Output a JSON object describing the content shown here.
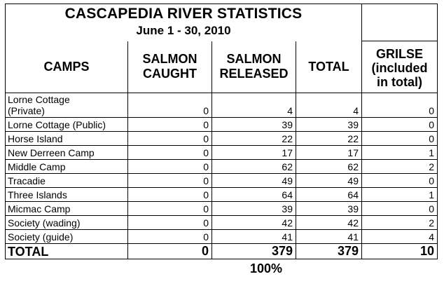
{
  "title": "CASCAPEDIA RIVER STATISTICS",
  "subtitle": "June 1 - 30, 2010",
  "headers": {
    "camps": "CAMPS",
    "caught_1": "SALMON",
    "caught_2": "CAUGHT",
    "released_1": "SALMON",
    "released_2": "RELEASED",
    "total": "TOTAL",
    "grilse_1": "GRILSE",
    "grilse_2": "(included",
    "grilse_3": "in total)"
  },
  "rows": [
    {
      "camp_line1": "Lorne Cottage",
      "camp_line2": "(Private)",
      "caught": "0",
      "released": "4",
      "total": "4",
      "grilse": "0"
    },
    {
      "camp": "Lorne Cottage (Public)",
      "caught": "0",
      "released": "39",
      "total": "39",
      "grilse": "0"
    },
    {
      "camp": "Horse Island",
      "caught": "0",
      "released": "22",
      "total": "22",
      "grilse": "0"
    },
    {
      "camp": "New Derreen Camp",
      "caught": "0",
      "released": "17",
      "total": "17",
      "grilse": "1"
    },
    {
      "camp": "Middle Camp",
      "caught": "0",
      "released": "62",
      "total": "62",
      "grilse": "2"
    },
    {
      "camp": "Tracadie",
      "caught": "0",
      "released": "49",
      "total": "49",
      "grilse": "0"
    },
    {
      "camp": "Three Islands",
      "caught": "0",
      "released": "64",
      "total": "64",
      "grilse": "1"
    },
    {
      "camp": "Micmac Camp",
      "caught": "0",
      "released": "39",
      "total": "39",
      "grilse": "0"
    },
    {
      "camp": "Society (wading)",
      "caught": "0",
      "released": "42",
      "total": "42",
      "grilse": "2"
    },
    {
      "camp": "Society (guide)",
      "caught": "0",
      "released": "41",
      "total": "41",
      "grilse": "4"
    }
  ],
  "totals": {
    "label": "TOTAL",
    "caught": "0",
    "released": "379",
    "total": "379",
    "grilse": "10"
  },
  "released_percent": "100%"
}
